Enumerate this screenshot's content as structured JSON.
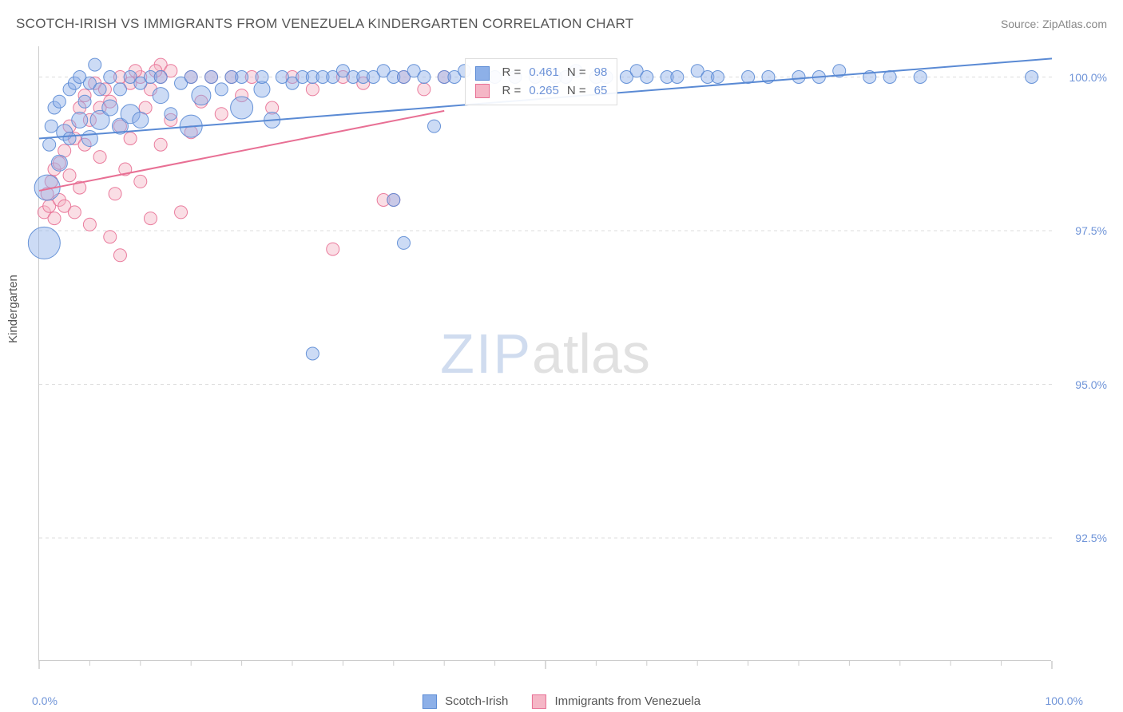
{
  "title": "SCOTCH-IRISH VS IMMIGRANTS FROM VENEZUELA KINDERGARTEN CORRELATION CHART",
  "source": "Source: ZipAtlas.com",
  "ylabel": "Kindergarten",
  "watermark": {
    "zip": "ZIP",
    "atlas": "atlas"
  },
  "chart": {
    "type": "scatter",
    "background_color": "#ffffff",
    "grid_color": "#dddddd",
    "axis_color": "#cccccc",
    "tick_label_color": "#6f94d8",
    "label_fontsize": 15,
    "title_fontsize": 17,
    "xlim": [
      0,
      100
    ],
    "ylim": [
      90.5,
      100.5
    ],
    "xticks_major": [
      0,
      50,
      100
    ],
    "xticks_all": [
      0,
      5,
      10,
      15,
      20,
      25,
      30,
      35,
      40,
      45,
      50,
      55,
      60,
      65,
      70,
      75,
      80,
      85,
      90,
      95,
      100
    ],
    "yticks": [
      92.5,
      95.0,
      97.5,
      100.0
    ],
    "ytick_labels": [
      "92.5%",
      "95.0%",
      "97.5%",
      "100.0%"
    ],
    "xaxis_min_label": "0.0%",
    "xaxis_max_label": "100.0%",
    "marker_opacity": 0.45,
    "marker_stroke_opacity": 0.9,
    "base_radius": 8
  },
  "series": [
    {
      "id": "scotch_irish",
      "label": "Scotch-Irish",
      "color_fill": "#8db0e8",
      "color_stroke": "#5a8ad4",
      "regression": {
        "x1": 0,
        "y1": 99.0,
        "x2": 100,
        "y2": 100.3
      },
      "stats": {
        "R": "0.461",
        "N": "98"
      },
      "points": [
        {
          "x": 0.5,
          "y": 97.3,
          "r": 20
        },
        {
          "x": 0.8,
          "y": 98.2,
          "r": 16
        },
        {
          "x": 1,
          "y": 98.9,
          "r": 8
        },
        {
          "x": 1.2,
          "y": 99.2,
          "r": 8
        },
        {
          "x": 1.5,
          "y": 99.5,
          "r": 8
        },
        {
          "x": 2,
          "y": 98.6,
          "r": 10
        },
        {
          "x": 2,
          "y": 99.6,
          "r": 8
        },
        {
          "x": 2.5,
          "y": 99.1,
          "r": 10
        },
        {
          "x": 3,
          "y": 99.8,
          "r": 8
        },
        {
          "x": 3,
          "y": 99.0,
          "r": 8
        },
        {
          "x": 3.5,
          "y": 99.9,
          "r": 8
        },
        {
          "x": 4,
          "y": 99.3,
          "r": 10
        },
        {
          "x": 4,
          "y": 100.0,
          "r": 8
        },
        {
          "x": 4.5,
          "y": 99.6,
          "r": 8
        },
        {
          "x": 5,
          "y": 99.9,
          "r": 8
        },
        {
          "x": 5,
          "y": 99.0,
          "r": 10
        },
        {
          "x": 5.5,
          "y": 100.2,
          "r": 8
        },
        {
          "x": 6,
          "y": 99.3,
          "r": 12
        },
        {
          "x": 6,
          "y": 99.8,
          "r": 8
        },
        {
          "x": 7,
          "y": 99.5,
          "r": 10
        },
        {
          "x": 7,
          "y": 100.0,
          "r": 8
        },
        {
          "x": 8,
          "y": 99.8,
          "r": 8
        },
        {
          "x": 8,
          "y": 99.2,
          "r": 10
        },
        {
          "x": 9,
          "y": 100.0,
          "r": 8
        },
        {
          "x": 9,
          "y": 99.4,
          "r": 12
        },
        {
          "x": 10,
          "y": 99.9,
          "r": 8
        },
        {
          "x": 10,
          "y": 99.3,
          "r": 10
        },
        {
          "x": 11,
          "y": 100.0,
          "r": 8
        },
        {
          "x": 12,
          "y": 99.7,
          "r": 10
        },
        {
          "x": 12,
          "y": 100.0,
          "r": 8
        },
        {
          "x": 13,
          "y": 99.4,
          "r": 8
        },
        {
          "x": 14,
          "y": 99.9,
          "r": 8
        },
        {
          "x": 15,
          "y": 99.2,
          "r": 14
        },
        {
          "x": 15,
          "y": 100.0,
          "r": 8
        },
        {
          "x": 16,
          "y": 99.7,
          "r": 12
        },
        {
          "x": 17,
          "y": 100.0,
          "r": 8
        },
        {
          "x": 18,
          "y": 99.8,
          "r": 8
        },
        {
          "x": 19,
          "y": 100.0,
          "r": 8
        },
        {
          "x": 20,
          "y": 99.5,
          "r": 14
        },
        {
          "x": 20,
          "y": 100.0,
          "r": 8
        },
        {
          "x": 22,
          "y": 99.8,
          "r": 10
        },
        {
          "x": 22,
          "y": 100.0,
          "r": 8
        },
        {
          "x": 23,
          "y": 99.3,
          "r": 10
        },
        {
          "x": 24,
          "y": 100.0,
          "r": 8
        },
        {
          "x": 25,
          "y": 99.9,
          "r": 8
        },
        {
          "x": 26,
          "y": 100.0,
          "r": 8
        },
        {
          "x": 27,
          "y": 100.0,
          "r": 8
        },
        {
          "x": 27,
          "y": 95.5,
          "r": 8
        },
        {
          "x": 28,
          "y": 100.0,
          "r": 8
        },
        {
          "x": 29,
          "y": 100.0,
          "r": 8
        },
        {
          "x": 30,
          "y": 100.1,
          "r": 8
        },
        {
          "x": 31,
          "y": 100.0,
          "r": 8
        },
        {
          "x": 32,
          "y": 100.0,
          "r": 8
        },
        {
          "x": 33,
          "y": 100.0,
          "r": 8
        },
        {
          "x": 34,
          "y": 100.1,
          "r": 8
        },
        {
          "x": 35,
          "y": 100.0,
          "r": 8
        },
        {
          "x": 35,
          "y": 98.0,
          "r": 8
        },
        {
          "x": 36,
          "y": 100.0,
          "r": 8
        },
        {
          "x": 36,
          "y": 97.3,
          "r": 8
        },
        {
          "x": 37,
          "y": 100.1,
          "r": 8
        },
        {
          "x": 38,
          "y": 100.0,
          "r": 8
        },
        {
          "x": 39,
          "y": 99.2,
          "r": 8
        },
        {
          "x": 40,
          "y": 100.0,
          "r": 8
        },
        {
          "x": 41,
          "y": 100.0,
          "r": 8
        },
        {
          "x": 42,
          "y": 100.1,
          "r": 8
        },
        {
          "x": 44,
          "y": 100.0,
          "r": 8
        },
        {
          "x": 45,
          "y": 100.0,
          "r": 8
        },
        {
          "x": 47,
          "y": 100.0,
          "r": 8
        },
        {
          "x": 49,
          "y": 100.0,
          "r": 8
        },
        {
          "x": 51,
          "y": 100.0,
          "r": 8
        },
        {
          "x": 52,
          "y": 100.0,
          "r": 8
        },
        {
          "x": 53,
          "y": 100.1,
          "r": 8
        },
        {
          "x": 55,
          "y": 100.0,
          "r": 8
        },
        {
          "x": 56,
          "y": 100.0,
          "r": 8
        },
        {
          "x": 58,
          "y": 100.0,
          "r": 8
        },
        {
          "x": 59,
          "y": 100.1,
          "r": 8
        },
        {
          "x": 60,
          "y": 100.0,
          "r": 8
        },
        {
          "x": 62,
          "y": 100.0,
          "r": 8
        },
        {
          "x": 63,
          "y": 100.0,
          "r": 8
        },
        {
          "x": 65,
          "y": 100.1,
          "r": 8
        },
        {
          "x": 66,
          "y": 100.0,
          "r": 8
        },
        {
          "x": 67,
          "y": 100.0,
          "r": 8
        },
        {
          "x": 70,
          "y": 100.0,
          "r": 8
        },
        {
          "x": 72,
          "y": 100.0,
          "r": 8
        },
        {
          "x": 75,
          "y": 100.0,
          "r": 8
        },
        {
          "x": 77,
          "y": 100.0,
          "r": 8
        },
        {
          "x": 79,
          "y": 100.1,
          "r": 8
        },
        {
          "x": 82,
          "y": 100.0,
          "r": 8
        },
        {
          "x": 84,
          "y": 100.0,
          "r": 8
        },
        {
          "x": 87,
          "y": 100.0,
          "r": 8
        },
        {
          "x": 98,
          "y": 100.0,
          "r": 8
        }
      ]
    },
    {
      "id": "venezuela",
      "label": "Immigrants from Venezuela",
      "color_fill": "#f5b6c6",
      "color_stroke": "#e86f94",
      "regression": {
        "x1": 0,
        "y1": 98.15,
        "x2": 40,
        "y2": 99.45
      },
      "stats": {
        "R": "0.265",
        "N": "65"
      },
      "points": [
        {
          "x": 0.5,
          "y": 97.8,
          "r": 8
        },
        {
          "x": 0.8,
          "y": 98.1,
          "r": 8
        },
        {
          "x": 1,
          "y": 97.9,
          "r": 8
        },
        {
          "x": 1.2,
          "y": 98.3,
          "r": 8
        },
        {
          "x": 1.5,
          "y": 97.7,
          "r": 8
        },
        {
          "x": 1.5,
          "y": 98.5,
          "r": 8
        },
        {
          "x": 2,
          "y": 98.0,
          "r": 8
        },
        {
          "x": 2,
          "y": 98.6,
          "r": 8
        },
        {
          "x": 2.5,
          "y": 98.8,
          "r": 8
        },
        {
          "x": 2.5,
          "y": 97.9,
          "r": 8
        },
        {
          "x": 3,
          "y": 99.2,
          "r": 8
        },
        {
          "x": 3,
          "y": 98.4,
          "r": 8
        },
        {
          "x": 3.5,
          "y": 97.8,
          "r": 8
        },
        {
          "x": 3.5,
          "y": 99.0,
          "r": 8
        },
        {
          "x": 4,
          "y": 99.5,
          "r": 8
        },
        {
          "x": 4,
          "y": 98.2,
          "r": 8
        },
        {
          "x": 4.5,
          "y": 98.9,
          "r": 8
        },
        {
          "x": 4.5,
          "y": 99.7,
          "r": 8
        },
        {
          "x": 5,
          "y": 97.6,
          "r": 8
        },
        {
          "x": 5,
          "y": 99.3,
          "r": 8
        },
        {
          "x": 5.5,
          "y": 99.9,
          "r": 8
        },
        {
          "x": 6,
          "y": 98.7,
          "r": 8
        },
        {
          "x": 6,
          "y": 99.5,
          "r": 8
        },
        {
          "x": 6.5,
          "y": 99.8,
          "r": 8
        },
        {
          "x": 7,
          "y": 97.4,
          "r": 8
        },
        {
          "x": 7,
          "y": 99.6,
          "r": 8
        },
        {
          "x": 7.5,
          "y": 98.1,
          "r": 8
        },
        {
          "x": 8,
          "y": 100.0,
          "r": 8
        },
        {
          "x": 8,
          "y": 99.2,
          "r": 8
        },
        {
          "x": 8,
          "y": 97.1,
          "r": 8
        },
        {
          "x": 8.5,
          "y": 98.5,
          "r": 8
        },
        {
          "x": 9,
          "y": 99.9,
          "r": 8
        },
        {
          "x": 9,
          "y": 99.0,
          "r": 8
        },
        {
          "x": 10,
          "y": 98.3,
          "r": 8
        },
        {
          "x": 10,
          "y": 100.0,
          "r": 8
        },
        {
          "x": 10.5,
          "y": 99.5,
          "r": 8
        },
        {
          "x": 11,
          "y": 97.7,
          "r": 8
        },
        {
          "x": 11,
          "y": 99.8,
          "r": 8
        },
        {
          "x": 12,
          "y": 100.0,
          "r": 8
        },
        {
          "x": 12,
          "y": 98.9,
          "r": 8
        },
        {
          "x": 13,
          "y": 99.3,
          "r": 8
        },
        {
          "x": 14,
          "y": 97.8,
          "r": 8
        },
        {
          "x": 15,
          "y": 100.0,
          "r": 8
        },
        {
          "x": 15,
          "y": 99.1,
          "r": 8
        },
        {
          "x": 16,
          "y": 99.6,
          "r": 8
        },
        {
          "x": 17,
          "y": 100.0,
          "r": 8
        },
        {
          "x": 18,
          "y": 99.4,
          "r": 8
        },
        {
          "x": 19,
          "y": 100.0,
          "r": 8
        },
        {
          "x": 20,
          "y": 99.7,
          "r": 8
        },
        {
          "x": 21,
          "y": 100.0,
          "r": 8
        },
        {
          "x": 23,
          "y": 99.5,
          "r": 8
        },
        {
          "x": 25,
          "y": 100.0,
          "r": 8
        },
        {
          "x": 27,
          "y": 99.8,
          "r": 8
        },
        {
          "x": 29,
          "y": 97.2,
          "r": 8
        },
        {
          "x": 30,
          "y": 100.0,
          "r": 8
        },
        {
          "x": 32,
          "y": 99.9,
          "r": 8
        },
        {
          "x": 34,
          "y": 98.0,
          "r": 8
        },
        {
          "x": 35,
          "y": 98.0,
          "r": 8
        },
        {
          "x": 36,
          "y": 100.0,
          "r": 8
        },
        {
          "x": 38,
          "y": 99.8,
          "r": 8
        },
        {
          "x": 40,
          "y": 100.0,
          "r": 8
        },
        {
          "x": 12,
          "y": 100.2,
          "r": 8
        },
        {
          "x": 13,
          "y": 100.1,
          "r": 8
        },
        {
          "x": 9.5,
          "y": 100.1,
          "r": 8
        },
        {
          "x": 11.5,
          "y": 100.1,
          "r": 8
        }
      ]
    }
  ],
  "stats_box": {
    "row1": {
      "r_label": "R =",
      "n_label": "N ="
    },
    "row2": {
      "r_label": "R =",
      "n_label": "N ="
    }
  },
  "bottom_legend": {
    "items": [
      {
        "series": 0
      },
      {
        "series": 1
      }
    ]
  }
}
